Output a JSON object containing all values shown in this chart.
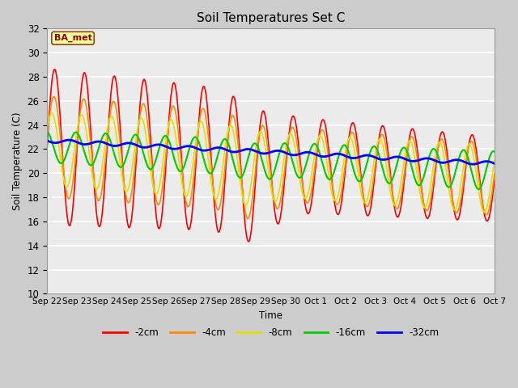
{
  "title": "Soil Temperatures Set C",
  "xlabel": "Time",
  "ylabel": "Soil Temperature (C)",
  "ylim": [
    10,
    32
  ],
  "yticks": [
    10,
    12,
    14,
    16,
    18,
    20,
    22,
    24,
    26,
    28,
    30,
    32
  ],
  "plot_bg_color": "#ebebeb",
  "fig_bg_color": "#cccccc",
  "annotation_text": "BA_met",
  "annotation_bg": "#ffff99",
  "annotation_border": "#8b4513",
  "legend_labels": [
    "-2cm",
    "-4cm",
    "-8cm",
    "-16cm",
    "-32cm"
  ],
  "line_colors": [
    "#ff0000",
    "#ff8c00",
    "#e0e000",
    "#00cc00",
    "#0000ff"
  ],
  "line_widths": [
    1.2,
    1.2,
    1.2,
    1.5,
    2.0
  ],
  "n_days": 15,
  "points_per_day": 48,
  "xtick_labels": [
    "Sep 22",
    "Sep 23",
    "Sep 24",
    "Sep 25",
    "Sep 26",
    "Sep 27",
    "Sep 28",
    "Sep 29",
    "Sep 30",
    "Oct 1",
    "Oct 2",
    "Oct 3",
    "Oct 4",
    "Oct 5",
    "Oct 6",
    "Oct 7"
  ]
}
